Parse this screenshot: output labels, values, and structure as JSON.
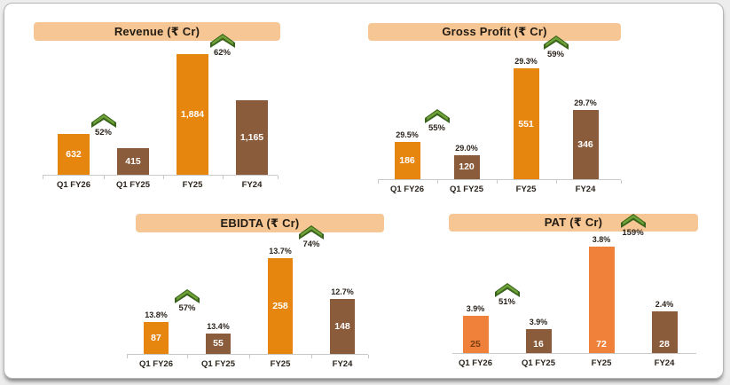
{
  "card": {
    "background": "#ffffff"
  },
  "colors": {
    "banner_bg": "#F6C795",
    "banner_text": "#221B12",
    "orange": "#E7860F",
    "orange_light": "#F0813B",
    "brown": "#8A5C3B",
    "green_dark": "#3A641E",
    "green_light": "#6FA237",
    "axis": "#C9C9C9",
    "text_dark": "#2B241D",
    "value_text_white": "#FFFFFF",
    "value_text_dark_brown": "#7A3E10"
  },
  "chart_data": [
    {
      "id": "revenue",
      "type": "bar",
      "title": "Revenue (₹ Cr)",
      "categories": [
        "Q1 FY26",
        "Q1 FY25",
        "FY25",
        "FY24"
      ],
      "values": [
        632,
        415,
        1884,
        1165
      ],
      "value_labels": [
        "632",
        "415",
        "1,884",
        "1,165"
      ],
      "pct_labels": null,
      "growth_arrows": [
        {
          "between": [
            0,
            1
          ],
          "label": "52%"
        },
        {
          "between": [
            2,
            3
          ],
          "label": "62%"
        }
      ],
      "bar_colors": [
        "#E7860F",
        "#8A5C3B",
        "#E7860F",
        "#8A5C3B"
      ],
      "value_label_colors": [
        "#FFFFFF",
        "#FFFFFF",
        "#FFFFFF",
        "#FFFFFF"
      ],
      "xlabel": "",
      "ylabel": "",
      "ylim": [
        0,
        1884
      ],
      "grid": false,
      "legend": "none"
    },
    {
      "id": "gross_profit",
      "type": "bar",
      "title": "Gross Profit (₹ Cr)",
      "categories": [
        "Q1 FY26",
        "Q1 FY25",
        "FY25",
        "FY24"
      ],
      "values": [
        186,
        120,
        551,
        346
      ],
      "value_labels": [
        "186",
        "120",
        "551",
        "346"
      ],
      "pct_labels": [
        "29.5%",
        "29.0%",
        "29.3%",
        "29.7%"
      ],
      "growth_arrows": [
        {
          "between": [
            0,
            1
          ],
          "label": "55%"
        },
        {
          "between": [
            2,
            3
          ],
          "label": "59%"
        }
      ],
      "bar_colors": [
        "#E7860F",
        "#8A5C3B",
        "#E7860F",
        "#8A5C3B"
      ],
      "value_label_colors": [
        "#FFFFFF",
        "#FFFFFF",
        "#FFFFFF",
        "#FFFFFF"
      ],
      "xlabel": "",
      "ylabel": "",
      "ylim": [
        0,
        551
      ],
      "grid": false,
      "legend": "none"
    },
    {
      "id": "ebidta",
      "type": "bar",
      "title": "EBIDTA (₹ Cr)",
      "categories": [
        "Q1 FY26",
        "Q1 FY25",
        "FY25",
        "FY24"
      ],
      "values": [
        87,
        55,
        258,
        148
      ],
      "value_labels": [
        "87",
        "55",
        "258",
        "148"
      ],
      "pct_labels": [
        "13.8%",
        "13.4%",
        "13.7%",
        "12.7%"
      ],
      "growth_arrows": [
        {
          "between": [
            0,
            1
          ],
          "label": "57%"
        },
        {
          "between": [
            2,
            3
          ],
          "label": "74%"
        }
      ],
      "bar_colors": [
        "#E7860F",
        "#8A5C3B",
        "#E7860F",
        "#8A5C3B"
      ],
      "value_label_colors": [
        "#FFFFFF",
        "#FFFFFF",
        "#FFFFFF",
        "#FFFFFF"
      ],
      "xlabel": "",
      "ylabel": "",
      "ylim": [
        0,
        258
      ],
      "grid": false,
      "legend": "none"
    },
    {
      "id": "pat",
      "type": "bar",
      "title": "PAT (₹ Cr)",
      "categories": [
        "Q1 FY26",
        "Q1 FY25",
        "FY25",
        "FY24"
      ],
      "values": [
        25,
        16,
        72,
        28
      ],
      "value_labels": [
        "25",
        "16",
        "72",
        "28"
      ],
      "pct_labels": [
        "3.9%",
        "3.9%",
        "3.8%",
        "2.4%"
      ],
      "growth_arrows": [
        {
          "between": [
            0,
            1
          ],
          "label": "51%"
        },
        {
          "between": [
            2,
            3
          ],
          "label": "159%"
        }
      ],
      "bar_colors": [
        "#F0813B",
        "#8A5C3B",
        "#F0813B",
        "#8A5C3B"
      ],
      "value_label_colors": [
        "#7A3E10",
        "#FFFFFF",
        "#FFFFFF",
        "#FFFFFF"
      ],
      "xlabel": "",
      "ylabel": "",
      "ylim": [
        0,
        72
      ],
      "grid": false,
      "legend": "none"
    }
  ]
}
